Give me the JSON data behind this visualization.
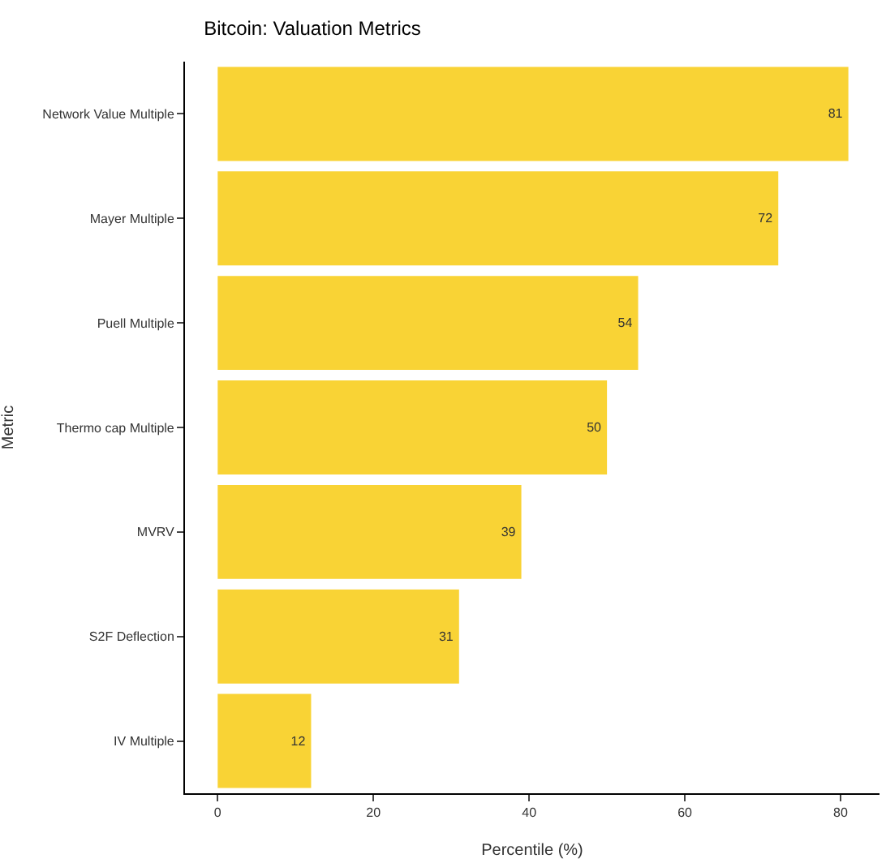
{
  "chart_data": {
    "type": "bar",
    "orientation": "horizontal",
    "title": "Bitcoin: Valuation Metrics",
    "xlabel": "Percentile (%)",
    "ylabel": "Metric",
    "categories": [
      "Network Value Multiple",
      "Mayer Multiple",
      "Puell Multiple",
      "Thermo cap Multiple",
      "MVRV",
      "S2F Deflection",
      "IV Multiple"
    ],
    "values": [
      81,
      72,
      54,
      50,
      39,
      31,
      12
    ],
    "color": "#f9d335",
    "data_labels": true,
    "xlim": [
      -4.2,
      85
    ],
    "xticks": [
      0,
      20,
      40,
      60,
      80
    ]
  }
}
